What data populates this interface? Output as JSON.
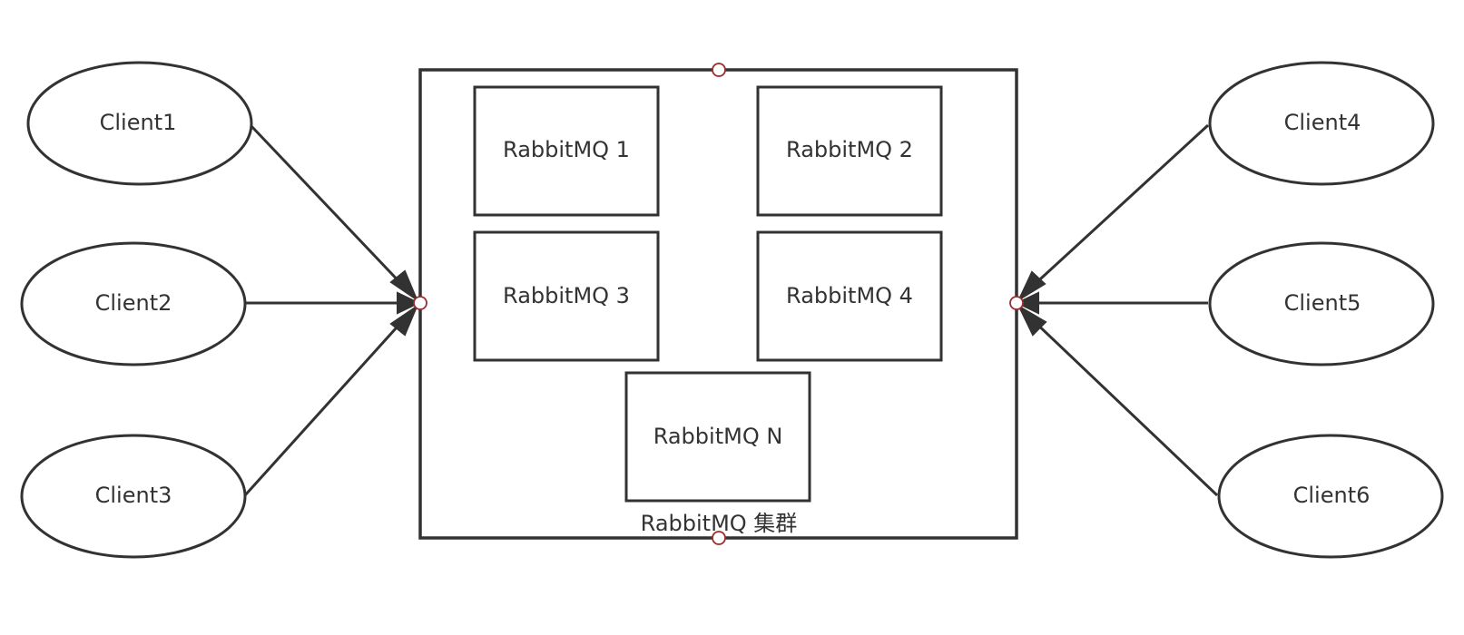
{
  "cluster": {
    "label": "RabbitMQ 集群"
  },
  "nodes": [
    {
      "id": "rabbitmq-1",
      "label": "RabbitMQ 1"
    },
    {
      "id": "rabbitmq-2",
      "label": "RabbitMQ 2"
    },
    {
      "id": "rabbitmq-3",
      "label": "RabbitMQ 3"
    },
    {
      "id": "rabbitmq-4",
      "label": "RabbitMQ 4"
    },
    {
      "id": "rabbitmq-n",
      "label": "RabbitMQ N"
    }
  ],
  "clients": [
    {
      "id": "client1",
      "label": "Client1"
    },
    {
      "id": "client2",
      "label": "Client2"
    },
    {
      "id": "client3",
      "label": "Client3"
    },
    {
      "id": "client4",
      "label": "Client4"
    },
    {
      "id": "client5",
      "label": "Client5"
    },
    {
      "id": "client6",
      "label": "Client6"
    }
  ],
  "edges": [
    {
      "from": "client1",
      "to": "cluster"
    },
    {
      "from": "client2",
      "to": "cluster"
    },
    {
      "from": "client3",
      "to": "cluster"
    },
    {
      "from": "client4",
      "to": "cluster"
    },
    {
      "from": "client5",
      "to": "cluster"
    },
    {
      "from": "client6",
      "to": "cluster"
    }
  ],
  "colors": {
    "stroke": "#323232",
    "text": "#333333",
    "anchor": "#9b2c2c",
    "background": "#ffffff"
  }
}
